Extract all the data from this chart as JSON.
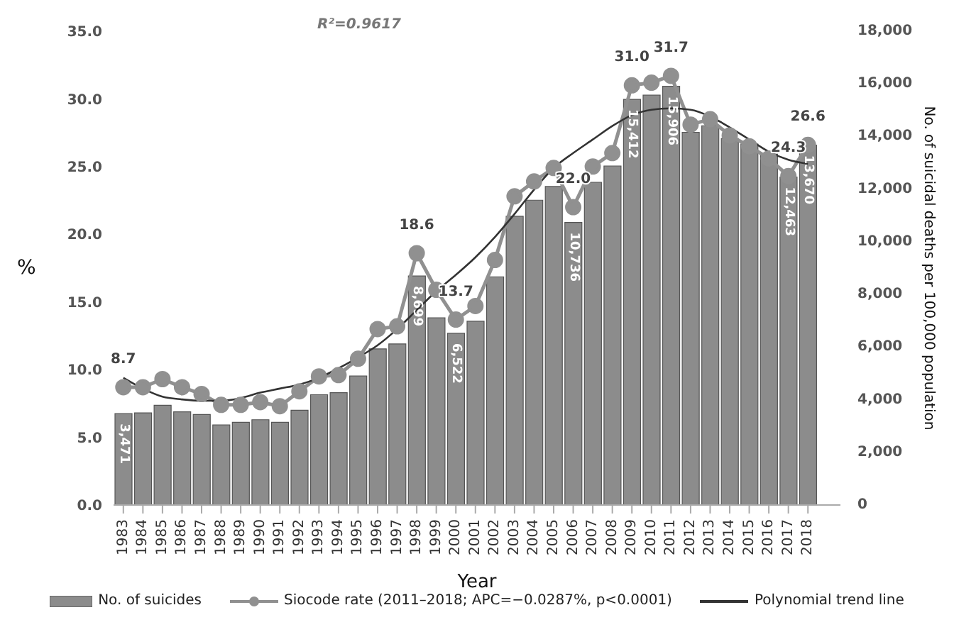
{
  "chart_data": {
    "type": "bar",
    "xlabel": "Year",
    "ylabel": "%",
    "y2label": "No. of suicidal deaths per 100,000 population",
    "annotations": [
      "R²=0.9617"
    ],
    "categories": [
      "1983",
      "1984",
      "1985",
      "1986",
      "1987",
      "1988",
      "1989",
      "1990",
      "1991",
      "1992",
      "1993",
      "1994",
      "1995",
      "1996",
      "1997",
      "1998",
      "1999",
      "2000",
      "2001",
      "2002",
      "2003",
      "2004",
      "2005",
      "2006",
      "2007",
      "2008",
      "2009",
      "2010",
      "2011",
      "2012",
      "2013",
      "2014",
      "2015",
      "2016",
      "2017",
      "2018"
    ],
    "series": [
      {
        "name": "No. of suicides",
        "axis": "y2",
        "color": "#8c8c8c",
        "values": [
          3471,
          3500,
          3790,
          3540,
          3440,
          3040,
          3140,
          3240,
          3140,
          3600,
          4190,
          4270,
          4900,
          5930,
          6120,
          8699,
          7110,
          6522,
          6980,
          8670,
          10970,
          11580,
          12100,
          10736,
          12260,
          12880,
          15412,
          15570,
          15906,
          14160,
          14410,
          13920,
          13710,
          13330,
          12463,
          13670
        ],
        "value_labels": [
          "3,471",
          null,
          null,
          null,
          null,
          null,
          null,
          null,
          null,
          null,
          null,
          null,
          null,
          null,
          null,
          "8,699",
          null,
          "6,522",
          null,
          null,
          null,
          null,
          null,
          "10,736",
          null,
          null,
          "15,412",
          null,
          "15,906",
          null,
          null,
          null,
          null,
          null,
          "12,463",
          "13,670"
        ]
      },
      {
        "name": "Siocode rate (2011–2018; APC=−0.0287%, p<0.0001)",
        "type": "line",
        "axis": "y",
        "color": "#909090",
        "marker": "circle",
        "values": [
          8.7,
          8.7,
          9.3,
          8.7,
          8.2,
          7.4,
          7.4,
          7.6,
          7.3,
          8.4,
          9.5,
          9.6,
          10.8,
          13.0,
          13.2,
          18.6,
          15.9,
          13.7,
          14.7,
          18.1,
          22.8,
          23.9,
          24.9,
          22.0,
          25.0,
          26.0,
          31.0,
          31.2,
          31.7,
          28.1,
          28.5,
          27.3,
          26.5,
          25.6,
          24.3,
          26.6
        ],
        "value_labels": [
          "8.7",
          null,
          null,
          null,
          null,
          null,
          null,
          null,
          null,
          null,
          null,
          null,
          null,
          null,
          null,
          "18.6",
          null,
          "13.7",
          null,
          null,
          null,
          null,
          null,
          "22.0",
          null,
          null,
          "31.0",
          null,
          "31.7",
          null,
          null,
          null,
          null,
          null,
          "24.3",
          "26.6"
        ]
      },
      {
        "name": "Polynomial trend line",
        "type": "line",
        "axis": "y",
        "color": "#333333",
        "marker": "none",
        "values": [
          9.4,
          8.6,
          8.0,
          7.8,
          7.7,
          7.7,
          7.9,
          8.3,
          8.6,
          8.9,
          9.4,
          10.1,
          10.9,
          11.8,
          13.0,
          14.4,
          15.8,
          17.0,
          18.3,
          19.8,
          21.5,
          23.3,
          24.9,
          26.0,
          27.0,
          28.0,
          28.8,
          29.2,
          29.3,
          29.2,
          28.7,
          27.9,
          27.0,
          26.1,
          25.5,
          25.2
        ]
      }
    ],
    "ylim": [
      0,
      35
    ],
    "yticks": [
      {
        "value": 0,
        "label": "0.0"
      },
      {
        "value": 5,
        "label": "5.0"
      },
      {
        "value": 10,
        "label": "10.0"
      },
      {
        "value": 15,
        "label": "15.0"
      },
      {
        "value": 20,
        "label": "20.0"
      },
      {
        "value": 25,
        "label": "25.0"
      },
      {
        "value": 30,
        "label": "30.0"
      },
      {
        "value": 35,
        "label": "35.0"
      }
    ],
    "y2lim": [
      0,
      18000
    ],
    "y2ticks": [
      0,
      {
        "value": 2000,
        "label": "2,000"
      },
      {
        "value": 4000,
        "label": "4,000"
      },
      {
        "value": 6000,
        "label": "6,000"
      },
      {
        "value": 8000,
        "label": "8,000"
      },
      {
        "value": 10000,
        "label": "10,000"
      },
      {
        "value": 12000,
        "label": "12,000"
      },
      {
        "value": 14000,
        "label": "14,000"
      },
      {
        "value": 16000,
        "label": "16,000"
      },
      {
        "value": 18000,
        "label": "18,000"
      }
    ],
    "grid": false,
    "legend": "bottom"
  }
}
